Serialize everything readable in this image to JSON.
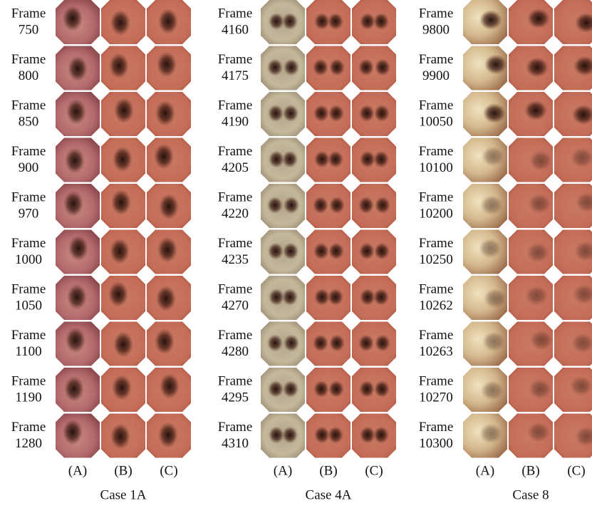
{
  "figure": {
    "frame_label": "Frame",
    "columns": [
      "(A)",
      "(B)",
      "(C)"
    ],
    "panels": [
      {
        "case": "Case 1A",
        "frames": [
          "750",
          "800",
          "850",
          "900",
          "970",
          "1000",
          "1050",
          "1100",
          "1190",
          "1280"
        ]
      },
      {
        "case": "Case 4A",
        "frames": [
          "4160",
          "4175",
          "4190",
          "4205",
          "4220",
          "4235",
          "4270",
          "4280",
          "4295",
          "4310"
        ]
      },
      {
        "case": "Case 8",
        "frames": [
          "9800",
          "9900",
          "10050",
          "10100",
          "10200",
          "10250",
          "10262",
          "10263",
          "10270",
          "10300"
        ]
      }
    ]
  }
}
